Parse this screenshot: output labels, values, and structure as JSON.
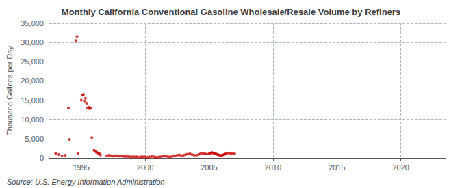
{
  "chart_data": {
    "type": "scatter",
    "title": "Monthly California Conventional Gasoline Wholesale/Resale Volume by Refiners",
    "ylabel": "Thousand Gallons per Day",
    "source": "Source: U.S. Energy Information Administration",
    "color": "#CC0000",
    "grid": true,
    "xlim": [
      1992.5,
      2023.5
    ],
    "xticks": [
      1995,
      2000,
      2005,
      2010,
      2015,
      2020
    ],
    "ylim": [
      0,
      35000
    ],
    "yticks": [
      0,
      {
        "value": 5000,
        "label": "5,000"
      },
      {
        "value": 10000,
        "label": "10,000"
      },
      {
        "value": 15000,
        "label": "15,000"
      },
      {
        "value": 20000,
        "label": "20,000"
      },
      {
        "value": 25000,
        "label": "25,000"
      },
      {
        "value": 30000,
        "label": "30,000"
      },
      {
        "value": 35000,
        "label": "35,000"
      }
    ],
    "x": [
      1993.0,
      1993.25,
      1993.5,
      1993.75,
      1994.0,
      1994.08,
      1994.58,
      1994.67,
      1994.75,
      1995.0,
      1995.08,
      1995.17,
      1995.25,
      1995.33,
      1995.42,
      1995.5,
      1995.58,
      1995.67,
      1995.75,
      1995.83,
      1996.0,
      1996.08,
      1996.17,
      1996.25,
      1996.33,
      1996.42,
      1996.5,
      1997.0,
      1997.17,
      1997.33,
      1997.5,
      1997.67,
      1997.83,
      1998.0,
      1998.17,
      1998.33,
      1998.5,
      1998.67,
      1998.83,
      1999.0,
      1999.17,
      1999.33,
      1999.5,
      1999.67,
      1999.83,
      2000.0,
      2000.17,
      2000.33,
      2000.5,
      2000.67,
      2000.83,
      2001.0,
      2001.17,
      2001.33,
      2001.5,
      2001.67,
      2001.83,
      2002.0,
      2002.17,
      2002.33,
      2002.5,
      2002.67,
      2002.83,
      2003.0,
      2003.17,
      2003.33,
      2003.5,
      2003.67,
      2003.83,
      2004.0,
      2004.17,
      2004.33,
      2004.5,
      2004.67,
      2004.83,
      2005.0,
      2005.08,
      2005.17,
      2005.25,
      2005.33,
      2005.42,
      2005.5,
      2005.58,
      2005.67,
      2005.75,
      2005.83,
      2005.92,
      2006.0,
      2006.08,
      2006.17,
      2006.25,
      2006.33,
      2006.5,
      2006.67,
      2006.83,
      2007.0
    ],
    "values": [
      1200,
      900,
      600,
      700,
      13000,
      4800,
      30500,
      31600,
      1200,
      15000,
      16300,
      16500,
      14800,
      15500,
      14200,
      13000,
      13200,
      12800,
      13000,
      5300,
      2000,
      1800,
      1500,
      1400,
      1200,
      1100,
      800,
      600,
      700,
      600,
      500,
      600,
      500,
      500,
      500,
      400,
      400,
      400,
      300,
      300,
      300,
      300,
      200,
      300,
      300,
      300,
      200,
      300,
      400,
      300,
      200,
      200,
      300,
      400,
      500,
      400,
      300,
      300,
      500,
      600,
      700,
      800,
      600,
      700,
      900,
      1000,
      1100,
      900,
      700,
      700,
      900,
      1100,
      1200,
      1100,
      1000,
      1100,
      1200,
      1300,
      1400,
      1300,
      1200,
      1100,
      1000,
      900,
      800,
      700,
      600,
      700,
      800,
      900,
      1000,
      1100,
      1300,
      1200,
      1100,
      1100
    ]
  }
}
